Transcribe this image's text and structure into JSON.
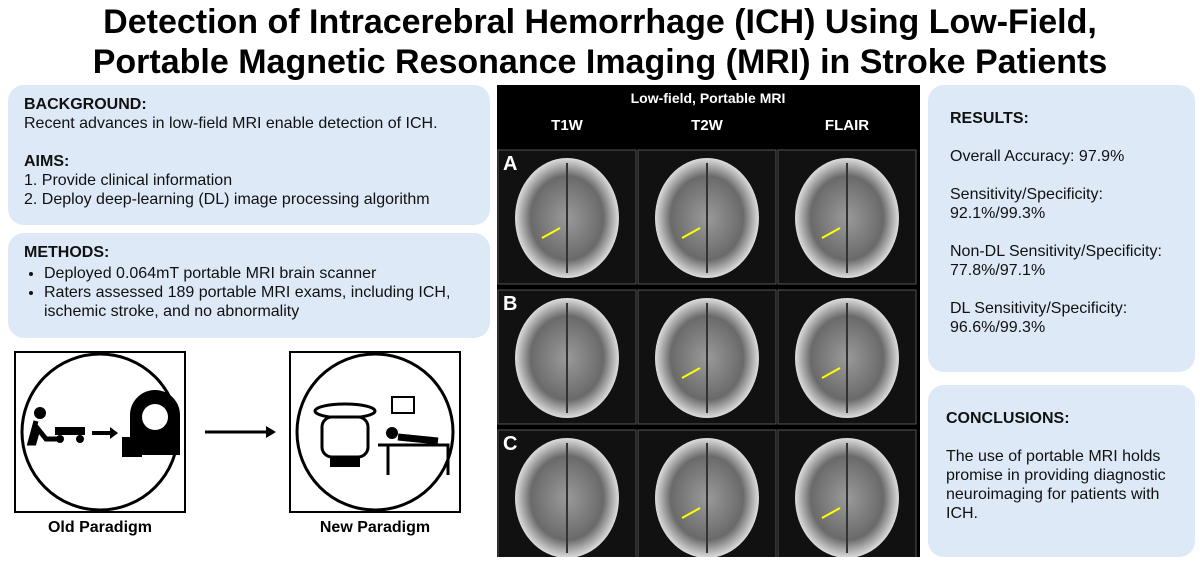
{
  "title": {
    "lines": [
      "Detection of Intracerebral Hemorrhage (ICH) Using Low-Field,",
      "Portable Magnetic Resonance Imaging (MRI) in Stroke Patients"
    ]
  },
  "background": {
    "heading": "BACKGROUND:",
    "text": "Recent advances in low-field MRI enable detection of ICH."
  },
  "aims": {
    "heading": "AIMS:",
    "items": [
      "1. Provide clinical information",
      "2. Deploy deep-learning (DL) image processing algorithm"
    ]
  },
  "methods": {
    "heading": "METHODS:",
    "items": [
      "Deployed 0.064mT portable MRI brain scanner",
      "Raters assessed 189 portable MRI exams, including ICH, ischemic stroke, and no abnormality"
    ]
  },
  "paradigms": {
    "old": "Old Paradigm",
    "new": "New Paradigm"
  },
  "mri": {
    "header": "Low-field, Portable MRI",
    "columns": [
      "T1W",
      "T2W",
      "FLAIR"
    ],
    "rows": [
      "A",
      "B",
      "C"
    ]
  },
  "results": {
    "heading": "RESULTS:",
    "items": [
      "Overall Accuracy: 97.9%",
      "Sensitivity/Specificity: 92.1%/99.3%",
      "Non-DL Sensitivity/Specificity: 77.8%/97.1%",
      "DL Sensitivity/Specificity: 96.6%/99.3%"
    ]
  },
  "conclusions": {
    "heading": "CONCLUSIONS:",
    "text": "The use of portable MRI holds promise in providing diagnostic neuroimaging for patients with ICH."
  }
}
